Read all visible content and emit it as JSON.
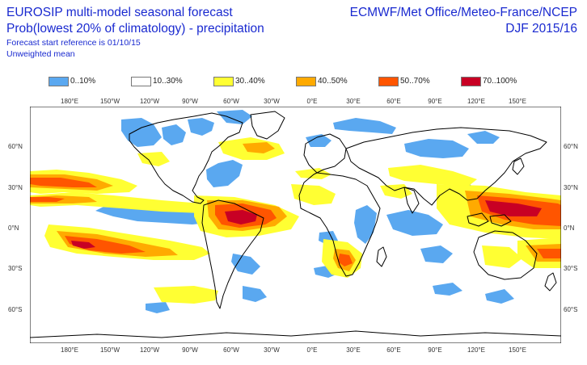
{
  "header": {
    "title_line1": "EUROSIP multi-model seasonal forecast",
    "title_line2": "Prob(lowest 20% of climatology) - precipitation",
    "line3": "Forecast start reference is 01/10/15",
    "line4": "Unweighted mean",
    "source": "ECMWF/Met Office/Meteo-France/NCEP",
    "period": "DJF 2015/16"
  },
  "legend": [
    {
      "label": "0..10%",
      "color": "#5aa8f0"
    },
    {
      "label": "10..30%",
      "color": "#ffffff"
    },
    {
      "label": "30..40%",
      "color": "#ffff33"
    },
    {
      "label": "40..50%",
      "color": "#ffaa00"
    },
    {
      "label": "50..70%",
      "color": "#ff5500"
    },
    {
      "label": "70..100%",
      "color": "#c80024"
    }
  ],
  "axes": {
    "lon_labels": [
      "180°E",
      "150°W",
      "120°W",
      "90°W",
      "60°W",
      "30°W",
      "0°E",
      "30°E",
      "60°E",
      "90°E",
      "120°E",
      "150°E"
    ],
    "lat_labels": [
      "60°N",
      "30°N",
      "0°N",
      "30°S",
      "60°S"
    ]
  }
}
